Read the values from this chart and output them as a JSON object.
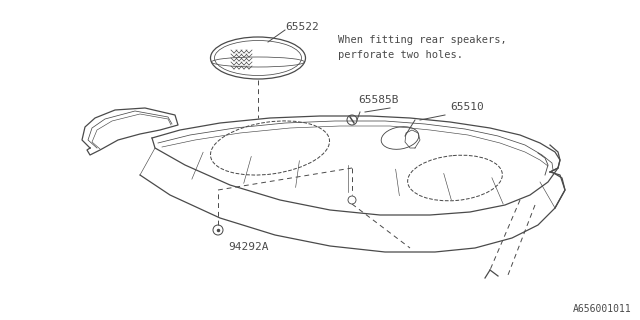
{
  "bg_color": "#ffffff",
  "line_color": "#4a4a4a",
  "footer": "A656001011",
  "note_text": "When fitting rear speakers,\nperforate two holes."
}
